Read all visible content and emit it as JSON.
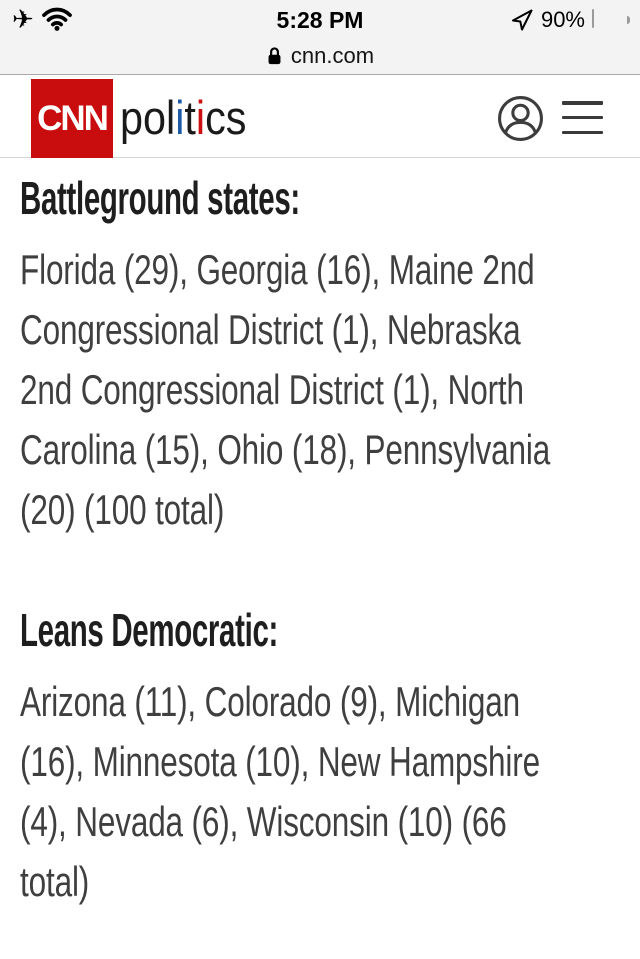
{
  "status_bar": {
    "time": "5:28 PM",
    "battery_percent": "90%",
    "battery_level": 0.9,
    "left_icons": [
      "airplane-mode",
      "wifi"
    ],
    "right_icons": [
      "location-services"
    ],
    "url": "cnn.com",
    "url_secure": true
  },
  "header": {
    "logo_text": "CNN",
    "brand_red": "#c90d0e",
    "wordmark_segments": [
      {
        "text": "pol",
        "color": "#1a1a1a"
      },
      {
        "text": "i",
        "color": "#1c5aa9"
      },
      {
        "text": "t",
        "color": "#1a1a1a"
      },
      {
        "text": "i",
        "color": "#cc1012"
      },
      {
        "text": "cs",
        "color": "#1a1a1a"
      }
    ],
    "icons": [
      "account",
      "menu"
    ]
  },
  "content": {
    "sections": [
      {
        "heading": "Battleground states:",
        "text": "Florida (29), Georgia (16), Maine 2nd Congressional District (1), Nebraska 2nd Congressional District (1), North Carolina (15), Ohio (18), Pennsylvania (20) (100 total)",
        "lines": [
          "Florida (29), Georgia (16), Maine 2nd",
          "Congressional District (1), Nebraska",
          "2nd Congressional District (1), North",
          "Carolina (15), Ohio (18), Pennsylvania",
          "(20) (100 total)"
        ]
      },
      {
        "heading": "Leans Democratic:",
        "text": "Arizona (11), Colorado (9), Michigan (16), Minnesota (10), New Hampshire (4), Nevada (6), Wisconsin (10) (66 total)",
        "lines": [
          "Arizona (11), Colorado (9), Michigan",
          "(16), Minnesota (10), New Hampshire",
          "(4), Nevada (6), Wisconsin (10) (66",
          "total)"
        ]
      }
    ]
  }
}
